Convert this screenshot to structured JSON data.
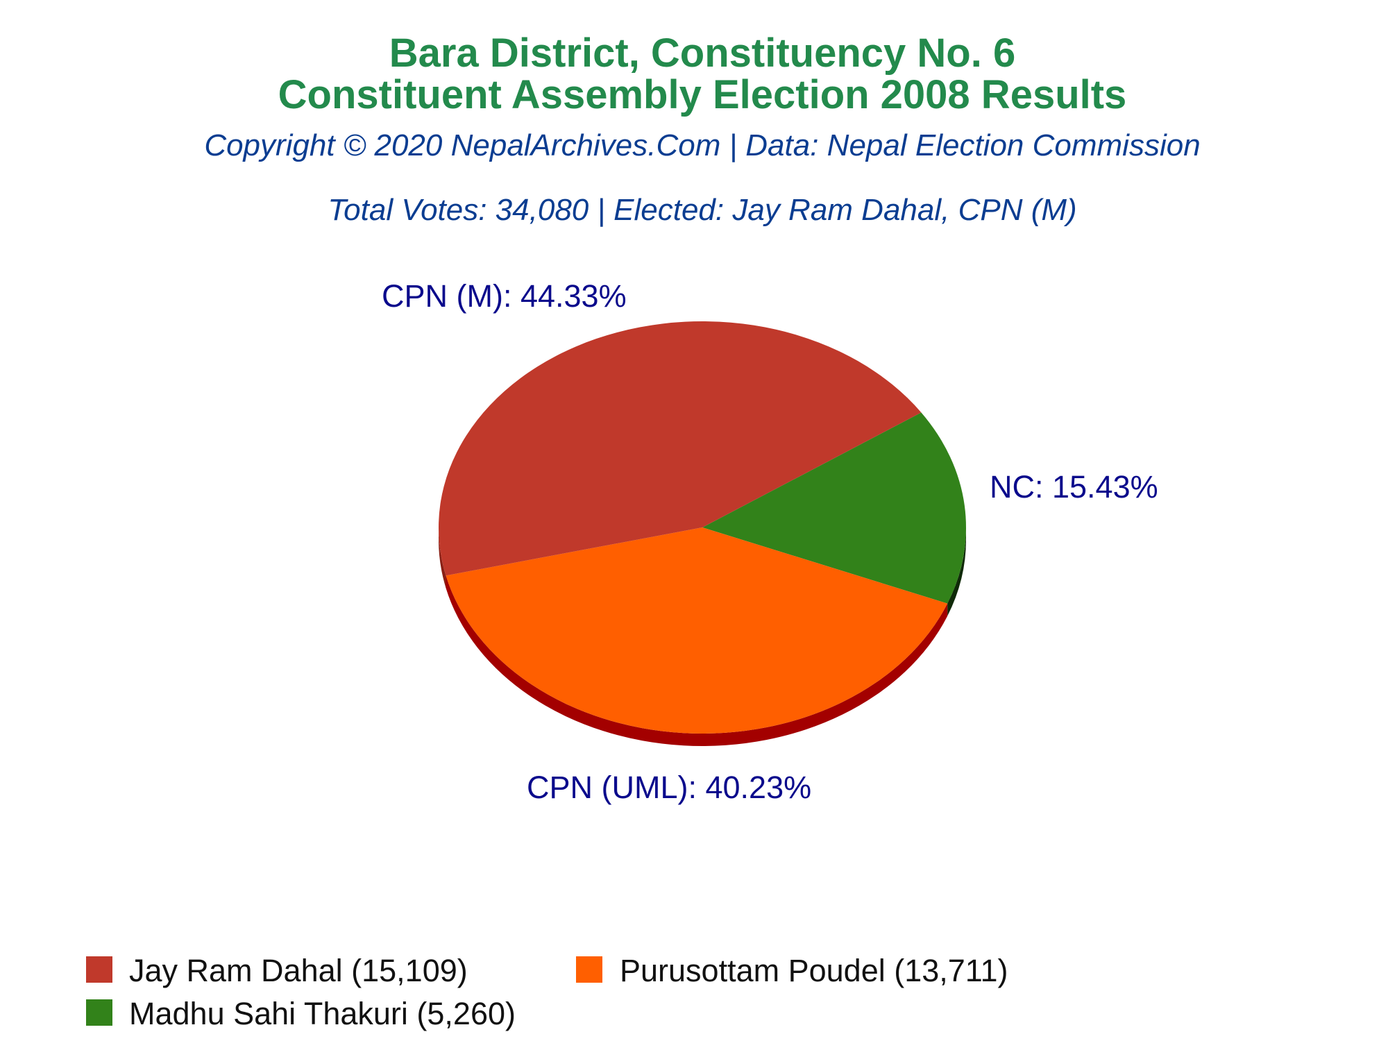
{
  "chart_data": {
    "type": "pie",
    "title": "Bara District, Constituency No. 6",
    "title_line2": "Constituent Assembly Election 2008 Results",
    "copyright": "Copyright © 2020 NepalArchives.Com | Data: Nepal Election Commission",
    "summary": "Total Votes: 34,080 | Elected: Jay Ram Dahal, CPN (M)",
    "slices": [
      {
        "party": "CPN (M)",
        "percent_label": "CPN (M): 44.33%",
        "candidate_label": "Jay Ram Dahal (15,109)",
        "votes": 15109,
        "color": "#c0392b",
        "side_color": "#8a1f14"
      },
      {
        "party": "CPN (UML)",
        "percent_label": "CPN (UML): 40.23%",
        "candidate_label": "Purusottam Poudel (13,711)",
        "votes": 13711,
        "color": "#ff5f00",
        "side_color": "#a30000"
      },
      {
        "party": "NC",
        "percent_label": "NC: 15.43%",
        "candidate_label": "Madhu Sahi Thakuri (5,260)",
        "votes": 5260,
        "color": "#32821a",
        "side_color": "#0f2a08"
      }
    ],
    "legend_placement": "bottom"
  }
}
